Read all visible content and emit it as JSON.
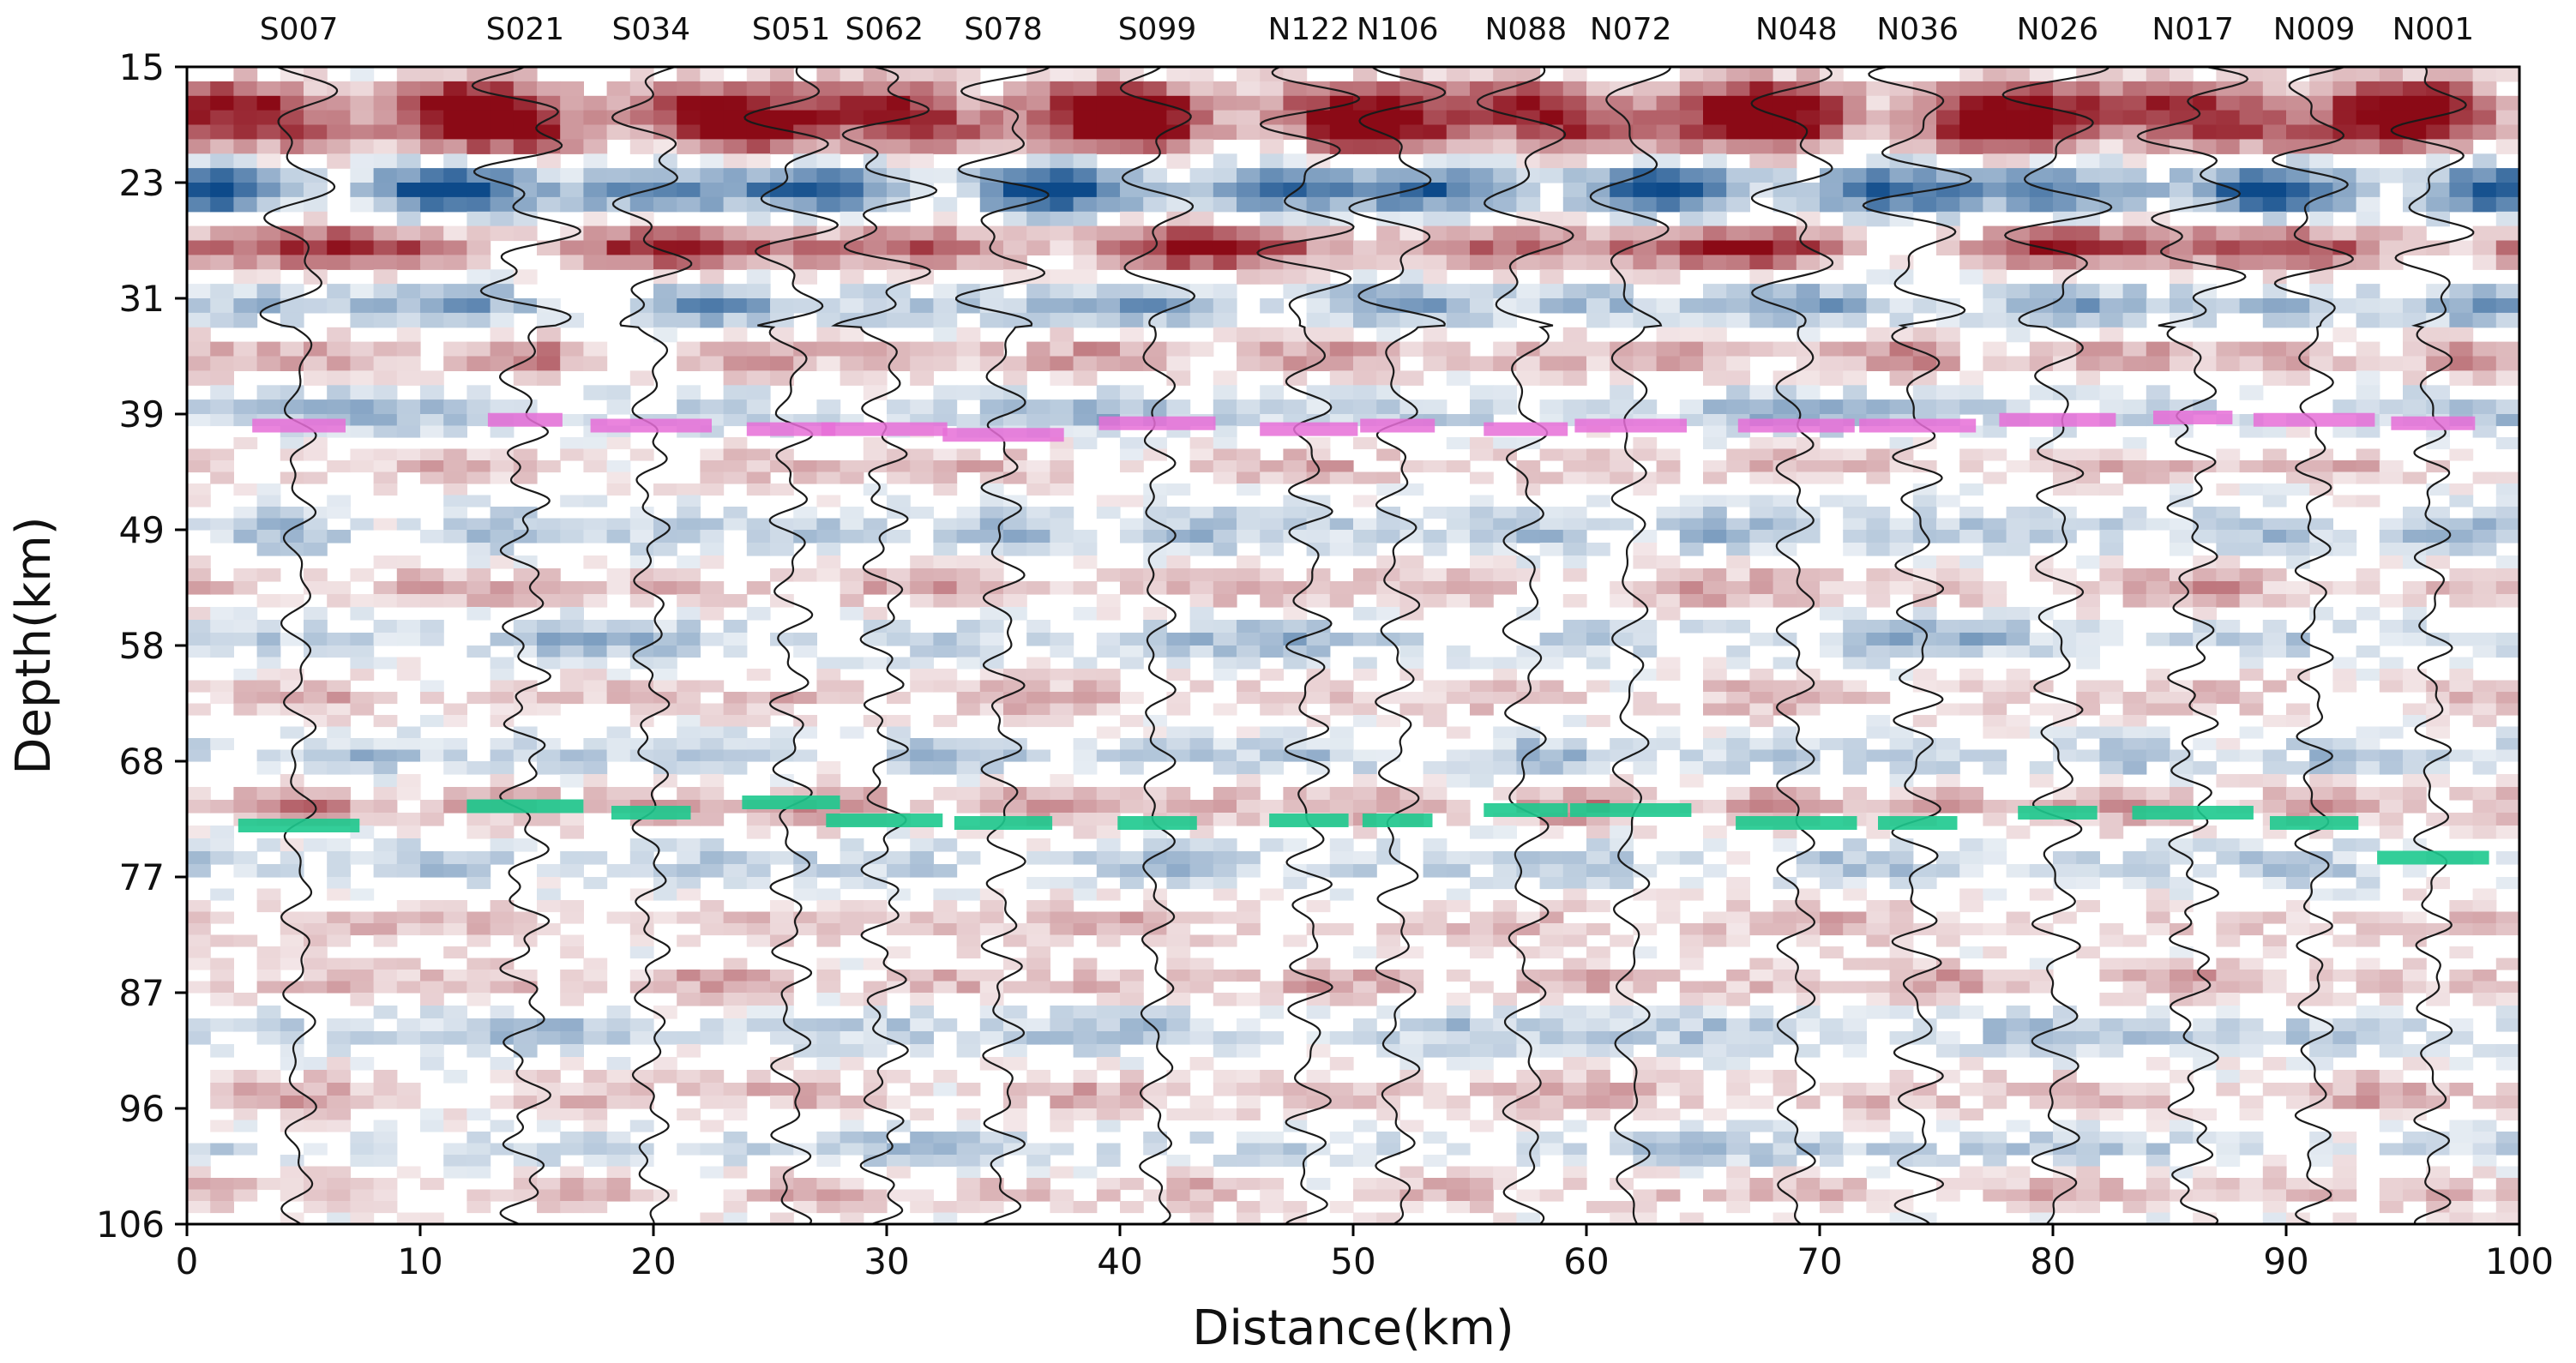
{
  "chart_data": {
    "type": "heatmap",
    "title": "",
    "xlabel": "Distance(km)",
    "ylabel": "Depth(km)",
    "xlim": [
      0,
      100
    ],
    "ylim": [
      15,
      106
    ],
    "x_ticks": [
      0,
      10,
      20,
      30,
      40,
      50,
      60,
      70,
      80,
      90,
      100
    ],
    "y_ticks": [
      15,
      23,
      31,
      39,
      49,
      58,
      68,
      77,
      87,
      96,
      106
    ],
    "colormap": {
      "positive": "#8b0a16",
      "negative": "#0d4a8a",
      "neutral": "#ffffff"
    },
    "stations": [
      {
        "name": "S007",
        "x": 4.8,
        "moho": 73.0,
        "pink": 40.0,
        "moho_halfwidth": 2.6,
        "pink_halfwidth": 2.0
      },
      {
        "name": "S021",
        "x": 14.5,
        "moho": 71.5,
        "pink": 39.5,
        "moho_halfwidth": 2.5,
        "pink_halfwidth": 1.6
      },
      {
        "name": "S034",
        "x": 19.9,
        "moho": 72.0,
        "pink": 40.0,
        "moho_halfwidth": 1.7,
        "pink_halfwidth": 2.6
      },
      {
        "name": "S051",
        "x": 25.9,
        "moho": 71.2,
        "pink": 40.3,
        "moho_halfwidth": 2.1,
        "pink_halfwidth": 1.9
      },
      {
        "name": "S062",
        "x": 29.9,
        "moho": 72.6,
        "pink": 40.3,
        "moho_halfwidth": 2.5,
        "pink_halfwidth": 2.7
      },
      {
        "name": "S078",
        "x": 35.0,
        "moho": 72.8,
        "pink": 40.8,
        "moho_halfwidth": 2.1,
        "pink_halfwidth": 2.6
      },
      {
        "name": "S099",
        "x": 41.6,
        "moho": 72.8,
        "pink": 39.8,
        "moho_halfwidth": 1.7,
        "pink_halfwidth": 2.5
      },
      {
        "name": "N122",
        "x": 48.1,
        "moho": 72.6,
        "pink": 40.3,
        "moho_halfwidth": 1.7,
        "pink_halfwidth": 2.1
      },
      {
        "name": "N106",
        "x": 51.9,
        "moho": 72.6,
        "pink": 40.0,
        "moho_halfwidth": 1.5,
        "pink_halfwidth": 1.6
      },
      {
        "name": "N088",
        "x": 57.4,
        "moho": 71.8,
        "pink": 40.3,
        "moho_halfwidth": 1.8,
        "pink_halfwidth": 1.8
      },
      {
        "name": "N072",
        "x": 61.9,
        "moho": 71.8,
        "pink": 40.0,
        "moho_halfwidth": 2.6,
        "pink_halfwidth": 2.4
      },
      {
        "name": "N048",
        "x": 69.0,
        "moho": 72.8,
        "pink": 40.0,
        "moho_halfwidth": 2.6,
        "pink_halfwidth": 2.5
      },
      {
        "name": "N036",
        "x": 74.2,
        "moho": 72.8,
        "pink": 40.0,
        "moho_halfwidth": 1.7,
        "pink_halfwidth": 2.5
      },
      {
        "name": "N026",
        "x": 80.2,
        "moho": 72.0,
        "pink": 39.5,
        "moho_halfwidth": 1.7,
        "pink_halfwidth": 2.5
      },
      {
        "name": "N017",
        "x": 86.0,
        "moho": 72.0,
        "pink": 39.3,
        "moho_halfwidth": 2.6,
        "pink_halfwidth": 1.7
      },
      {
        "name": "N009",
        "x": 91.2,
        "moho": 72.8,
        "pink": 39.5,
        "moho_halfwidth": 1.9,
        "pink_halfwidth": 2.6
      },
      {
        "name": "N001",
        "x": 96.3,
        "moho": 75.5,
        "pink": 39.8,
        "moho_halfwidth": 2.4,
        "pink_halfwidth": 1.8
      }
    ],
    "moho_marker_color": "#1ec98e",
    "pink_marker_color": "#e76fd8",
    "trace_color": "#1a1a1a",
    "layers": [
      {
        "depth": 17.5,
        "amp": 1.0,
        "width": 1.6,
        "sign": 1
      },
      {
        "depth": 19.5,
        "amp": 0.9,
        "width": 1.5,
        "sign": 1
      },
      {
        "depth": 23.5,
        "amp": 0.95,
        "width": 1.6,
        "sign": -1
      },
      {
        "depth": 27.5,
        "amp": 0.9,
        "width": 1.4,
        "sign": 1
      },
      {
        "depth": 31.5,
        "amp": 0.5,
        "width": 1.4,
        "sign": -1
      },
      {
        "depth": 35.0,
        "amp": 0.45,
        "width": 1.3,
        "sign": 1
      },
      {
        "depth": 39.0,
        "amp": 0.35,
        "width": 1.5,
        "sign": -1
      },
      {
        "depth": 43.5,
        "amp": 0.3,
        "width": 1.5,
        "sign": 1
      },
      {
        "depth": 49.0,
        "amp": 0.35,
        "width": 1.8,
        "sign": -1
      },
      {
        "depth": 53.5,
        "amp": 0.35,
        "width": 1.6,
        "sign": 1
      },
      {
        "depth": 57.5,
        "amp": 0.35,
        "width": 1.6,
        "sign": -1
      },
      {
        "depth": 62.5,
        "amp": 0.3,
        "width": 1.6,
        "sign": 1
      },
      {
        "depth": 67.5,
        "amp": 0.35,
        "width": 1.5,
        "sign": -1
      },
      {
        "depth": 71.5,
        "amp": 0.45,
        "width": 1.5,
        "sign": 1
      },
      {
        "depth": 76.0,
        "amp": 0.3,
        "width": 1.6,
        "sign": -1
      },
      {
        "depth": 81.0,
        "amp": 0.3,
        "width": 1.6,
        "sign": 1
      },
      {
        "depth": 86.0,
        "amp": 0.35,
        "width": 1.5,
        "sign": 1
      },
      {
        "depth": 90.0,
        "amp": 0.35,
        "width": 1.5,
        "sign": -1
      },
      {
        "depth": 95.0,
        "amp": 0.3,
        "width": 1.6,
        "sign": 1
      },
      {
        "depth": 99.5,
        "amp": 0.3,
        "width": 1.6,
        "sign": -1
      },
      {
        "depth": 103.0,
        "amp": 0.3,
        "width": 1.6,
        "sign": 1
      }
    ]
  }
}
